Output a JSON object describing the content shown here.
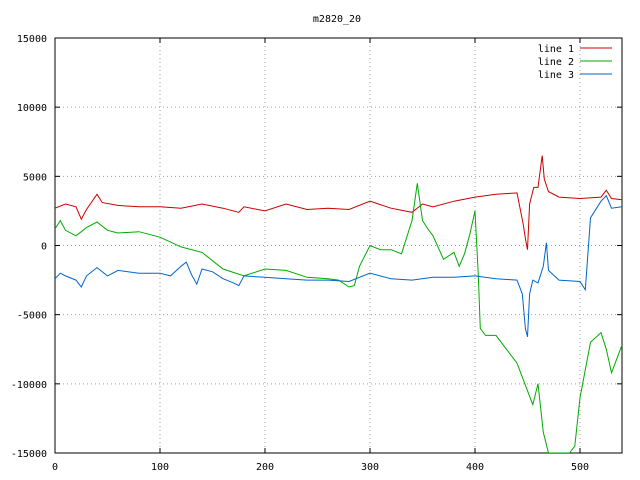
{
  "chart_data": {
    "type": "line",
    "title": "m2820_20",
    "xlabel": "",
    "ylabel": "",
    "xlim": [
      0,
      540
    ],
    "ylim": [
      -15000,
      15000
    ],
    "xticks": [
      0,
      100,
      200,
      300,
      400,
      500
    ],
    "yticks": [
      15000,
      10000,
      5000,
      0,
      -5000,
      -10000,
      -15000
    ],
    "grid": true,
    "legend_position": "top-right",
    "series": [
      {
        "name": "line 1",
        "color": "#cc0000",
        "x": [
          0,
          10,
          20,
          25,
          30,
          40,
          45,
          60,
          80,
          100,
          120,
          140,
          160,
          175,
          180,
          200,
          220,
          240,
          260,
          280,
          300,
          320,
          340,
          350,
          360,
          380,
          400,
          420,
          440,
          446,
          448,
          450,
          452,
          456,
          460,
          464,
          466,
          470,
          480,
          500,
          520,
          525,
          530,
          540
        ],
        "y": [
          2700,
          3000,
          2800,
          1900,
          2600,
          3700,
          3100,
          2900,
          2800,
          2800,
          2700,
          3000,
          2700,
          2400,
          2800,
          2500,
          3000,
          2600,
          2700,
          2600,
          3200,
          2700,
          2400,
          3000,
          2800,
          3200,
          3500,
          3700,
          3800,
          1500,
          500,
          -300,
          3000,
          4200,
          4200,
          6500,
          4800,
          3900,
          3500,
          3400,
          3500,
          4000,
          3400,
          3300
        ]
      },
      {
        "name": "line 2",
        "color": "#00aa00",
        "x": [
          0,
          5,
          10,
          20,
          25,
          30,
          40,
          50,
          60,
          80,
          100,
          120,
          140,
          160,
          180,
          200,
          220,
          240,
          260,
          270,
          280,
          285,
          290,
          300,
          310,
          320,
          330,
          340,
          345,
          350,
          355,
          360,
          370,
          380,
          385,
          390,
          395,
          400,
          403,
          405,
          410,
          420,
          430,
          440,
          450,
          455,
          460,
          465,
          470,
          480,
          490,
          495,
          500,
          510,
          520,
          525,
          530,
          540
        ],
        "y": [
          1200,
          1800,
          1100,
          700,
          1000,
          1300,
          1700,
          1100,
          900,
          1000,
          600,
          -100,
          -500,
          -1700,
          -2200,
          -1700,
          -1800,
          -2300,
          -2400,
          -2500,
          -3000,
          -2900,
          -1500,
          0,
          -300,
          -300,
          -600,
          1800,
          4500,
          1800,
          1200,
          700,
          -1000,
          -500,
          -1500,
          -600,
          800,
          2500,
          -2000,
          -6000,
          -6500,
          -6500,
          -7500,
          -8500,
          -10500,
          -11500,
          -10000,
          -13500,
          -15000,
          -15000,
          -15000,
          -14500,
          -11000,
          -7000,
          -6300,
          -7500,
          -9200,
          -7200
        ]
      },
      {
        "name": "line 3",
        "color": "#0066cc",
        "x": [
          0,
          5,
          10,
          20,
          25,
          30,
          40,
          50,
          60,
          80,
          100,
          110,
          120,
          125,
          130,
          135,
          140,
          150,
          160,
          170,
          175,
          180,
          200,
          220,
          240,
          260,
          280,
          300,
          320,
          340,
          360,
          380,
          400,
          420,
          440,
          445,
          448,
          450,
          452,
          455,
          460,
          465,
          468,
          470,
          480,
          500,
          505,
          510,
          520,
          525,
          530,
          540
        ],
        "y": [
          -2400,
          -2000,
          -2200,
          -2500,
          -3000,
          -2200,
          -1600,
          -2200,
          -1800,
          -2000,
          -2000,
          -2200,
          -1500,
          -1200,
          -2100,
          -2800,
          -1700,
          -1900,
          -2400,
          -2700,
          -2900,
          -2200,
          -2300,
          -2400,
          -2500,
          -2500,
          -2600,
          -2000,
          -2400,
          -2500,
          -2300,
          -2300,
          -2200,
          -2400,
          -2500,
          -3500,
          -6000,
          -6600,
          -3500,
          -2500,
          -2700,
          -1500,
          200,
          -1800,
          -2500,
          -2600,
          -3200,
          2000,
          3200,
          3600,
          2700,
          2800
        ]
      }
    ]
  }
}
